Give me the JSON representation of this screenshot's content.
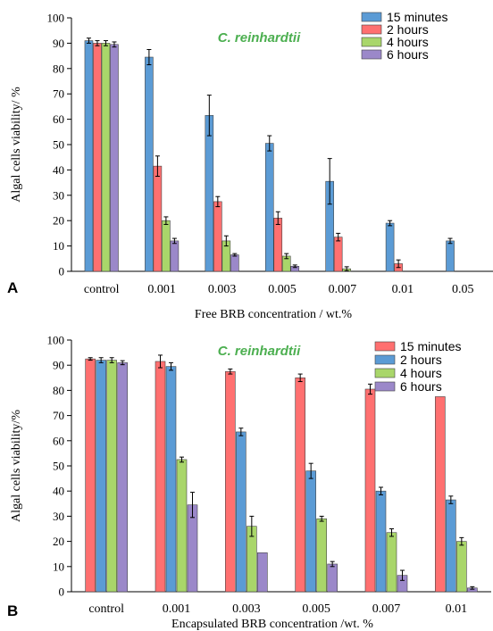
{
  "colors": {
    "blue": "#5b9bd5",
    "red": "#ff7070",
    "green": "#a9d66a",
    "purple": "#9b88c9",
    "species": "#4caf50"
  },
  "chart_data": [
    {
      "panel": "A",
      "type": "bar",
      "species_label": "C. reinhardtii",
      "xlabel": "Free BRB concentration / wt.%",
      "ylabel": "Algal cells viability/ %",
      "ylim": [
        0,
        100
      ],
      "yticks": [
        0,
        10,
        20,
        30,
        40,
        50,
        60,
        70,
        80,
        90,
        100
      ],
      "categories": [
        "control",
        "0.001",
        "0.003",
        "0.005",
        "0.007",
        "0.01",
        "0.05"
      ],
      "legend_position": "top-right",
      "series": [
        {
          "name": "15 minutes",
          "color": "blue",
          "values": [
            91,
            84.5,
            61.5,
            50.5,
            35.5,
            19,
            12
          ],
          "errors": [
            1,
            3,
            8,
            3,
            9,
            1,
            1
          ]
        },
        {
          "name": "2 hours",
          "color": "red",
          "values": [
            90,
            41.5,
            27.5,
            21,
            13.5,
            3,
            0
          ],
          "errors": [
            1,
            4,
            2,
            2.5,
            1.5,
            1.5,
            0
          ]
        },
        {
          "name": "4 hours",
          "color": "green",
          "values": [
            90,
            20,
            12,
            6,
            1,
            0,
            0
          ],
          "errors": [
            1,
            1.5,
            2,
            1,
            0.8,
            0,
            0
          ]
        },
        {
          "name": "6 hours",
          "color": "purple",
          "values": [
            89.5,
            12,
            6.5,
            2,
            0,
            0,
            0
          ],
          "errors": [
            1,
            1,
            0.5,
            0.5,
            0,
            0,
            0
          ]
        }
      ]
    },
    {
      "panel": "B",
      "type": "bar",
      "species_label": "C. reinhardtii",
      "xlabel": "Encapsulated BRB concentration /wt. %",
      "ylabel": "Algal cells viability/%",
      "ylim": [
        0,
        100
      ],
      "yticks": [
        0,
        10,
        20,
        30,
        40,
        50,
        60,
        70,
        80,
        90,
        100
      ],
      "categories": [
        "control",
        "0.001",
        "0.003",
        "0.005",
        "0.007",
        "0.01"
      ],
      "legend_position": "top-right",
      "series": [
        {
          "name": "15 minutes",
          "color": "red",
          "values": [
            92.5,
            91.5,
            87.5,
            85,
            80.5,
            77.5
          ],
          "errors": [
            0.5,
            2.5,
            1,
            1.5,
            2,
            0
          ]
        },
        {
          "name": "2 hours",
          "color": "blue",
          "values": [
            92,
            89.5,
            63.5,
            48,
            40,
            36.5
          ],
          "errors": [
            1,
            1.5,
            1.5,
            3,
            1.5,
            1.5
          ]
        },
        {
          "name": "4 hours",
          "color": "green",
          "values": [
            92,
            52.5,
            26,
            29,
            23.5,
            20
          ],
          "errors": [
            1,
            1,
            4,
            1,
            1.5,
            1.5
          ]
        },
        {
          "name": "6 hours",
          "color": "purple",
          "values": [
            91,
            34.5,
            15.5,
            11,
            6.5,
            1.5
          ],
          "errors": [
            0.8,
            5,
            0,
            1,
            2,
            0.5
          ]
        }
      ]
    }
  ]
}
